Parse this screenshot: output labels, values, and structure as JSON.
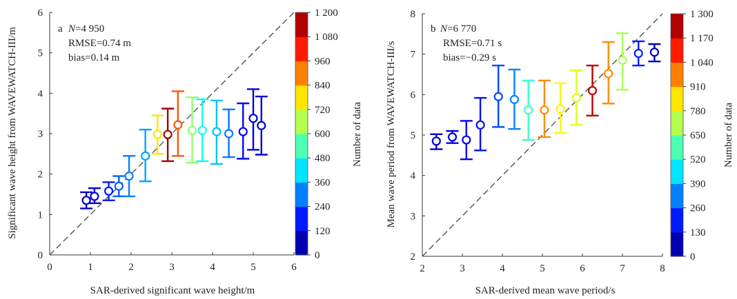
{
  "chart_data": [
    {
      "type": "scatter",
      "panel_label": "a",
      "stats": {
        "n_label": "N",
        "n_value": "=4 950",
        "rmse": "RMSE=0.74 m",
        "bias": "bias=0.14 m"
      },
      "xlabel": "SAR-derived significant wave height/m",
      "ylabel": "Significant wave height from WAVEWATCH-III/m",
      "xlim": [
        0,
        6
      ],
      "ylim": [
        0,
        6
      ],
      "xticks": [
        "0",
        "1",
        "2",
        "3",
        "4",
        "5",
        "6"
      ],
      "yticks": [
        "0",
        "1",
        "2",
        "3",
        "4",
        "5",
        "6"
      ],
      "reference_line": "y = x",
      "colorbar": {
        "label": "Number of data",
        "range": [
          0,
          1200
        ],
        "ticks": [
          "0",
          "120",
          "240",
          "360",
          "480",
          "600",
          "720",
          "840",
          "960",
          "1 080",
          "1 200"
        ]
      },
      "points": [
        {
          "x": 0.9,
          "y": 1.35,
          "low": 1.15,
          "high": 1.55,
          "count": 80
        },
        {
          "x": 1.1,
          "y": 1.45,
          "low": 1.28,
          "high": 1.65,
          "count": 100
        },
        {
          "x": 1.45,
          "y": 1.58,
          "low": 1.35,
          "high": 1.8,
          "count": 180
        },
        {
          "x": 1.7,
          "y": 1.7,
          "low": 1.45,
          "high": 1.95,
          "count": 260
        },
        {
          "x": 1.95,
          "y": 1.95,
          "low": 1.45,
          "high": 2.45,
          "count": 300
        },
        {
          "x": 2.35,
          "y": 2.45,
          "low": 1.82,
          "high": 3.1,
          "count": 340
        },
        {
          "x": 2.65,
          "y": 2.98,
          "low": 2.5,
          "high": 3.45,
          "count": 780
        },
        {
          "x": 2.9,
          "y": 2.98,
          "low": 2.32,
          "high": 3.62,
          "count": 1160
        },
        {
          "x": 3.15,
          "y": 3.22,
          "low": 2.45,
          "high": 4.05,
          "count": 950
        },
        {
          "x": 3.5,
          "y": 3.08,
          "low": 2.28,
          "high": 3.9,
          "count": 620
        },
        {
          "x": 3.75,
          "y": 3.08,
          "low": 2.32,
          "high": 3.85,
          "count": 470
        },
        {
          "x": 4.1,
          "y": 3.05,
          "low": 2.25,
          "high": 3.82,
          "count": 380
        },
        {
          "x": 4.4,
          "y": 3.0,
          "low": 2.42,
          "high": 3.6,
          "count": 290
        },
        {
          "x": 4.75,
          "y": 3.05,
          "low": 2.38,
          "high": 3.75,
          "count": 160
        },
        {
          "x": 5.0,
          "y": 3.38,
          "low": 2.6,
          "high": 4.1,
          "count": 120
        },
        {
          "x": 5.2,
          "y": 3.2,
          "low": 2.48,
          "high": 3.92,
          "count": 90
        }
      ]
    },
    {
      "type": "scatter",
      "panel_label": "b",
      "stats": {
        "n_label": "N",
        "n_value": "=6 770",
        "rmse": "RMSE=0.71 s",
        "bias": "bias=−0.29 s"
      },
      "xlabel": "SAR-derived mean wave period/s",
      "ylabel": "Mean wave period from WAVEWATCH-III/s",
      "xlim": [
        2,
        8
      ],
      "ylim": [
        2,
        8
      ],
      "xticks": [
        "2",
        "3",
        "4",
        "5",
        "6",
        "7",
        "8"
      ],
      "yticks": [
        "2",
        "3",
        "4",
        "5",
        "6",
        "7",
        "8"
      ],
      "reference_line": "y = x",
      "colorbar": {
        "label": "Number of data",
        "range": [
          0,
          1300
        ],
        "ticks": [
          "0",
          "130",
          "260",
          "390",
          "520",
          "650",
          "780",
          "910",
          "1 040",
          "1 170",
          "1 300"
        ]
      },
      "points": [
        {
          "x": 2.35,
          "y": 4.85,
          "low": 4.65,
          "high": 5.02,
          "count": 100
        },
        {
          "x": 2.75,
          "y": 4.95,
          "low": 4.8,
          "high": 5.1,
          "count": 120
        },
        {
          "x": 3.1,
          "y": 4.88,
          "low": 4.4,
          "high": 5.35,
          "count": 150
        },
        {
          "x": 3.45,
          "y": 5.25,
          "low": 4.62,
          "high": 5.92,
          "count": 180
        },
        {
          "x": 3.9,
          "y": 5.95,
          "low": 5.2,
          "high": 6.72,
          "count": 250
        },
        {
          "x": 4.3,
          "y": 5.88,
          "low": 5.15,
          "high": 6.62,
          "count": 330
        },
        {
          "x": 4.65,
          "y": 5.62,
          "low": 4.88,
          "high": 6.35,
          "count": 560
        },
        {
          "x": 5.05,
          "y": 5.62,
          "low": 4.95,
          "high": 6.35,
          "count": 960
        },
        {
          "x": 5.45,
          "y": 5.65,
          "low": 5.05,
          "high": 6.28,
          "count": 820
        },
        {
          "x": 5.85,
          "y": 5.92,
          "low": 5.25,
          "high": 6.6,
          "count": 770
        },
        {
          "x": 6.25,
          "y": 6.1,
          "low": 5.48,
          "high": 6.72,
          "count": 1220
        },
        {
          "x": 6.65,
          "y": 6.52,
          "low": 5.78,
          "high": 7.3,
          "count": 960
        },
        {
          "x": 7.0,
          "y": 6.85,
          "low": 6.12,
          "high": 7.52,
          "count": 700
        },
        {
          "x": 7.4,
          "y": 7.02,
          "low": 6.72,
          "high": 7.32,
          "count": 200
        },
        {
          "x": 7.8,
          "y": 7.05,
          "low": 6.82,
          "high": 7.25,
          "count": 80
        }
      ]
    }
  ]
}
